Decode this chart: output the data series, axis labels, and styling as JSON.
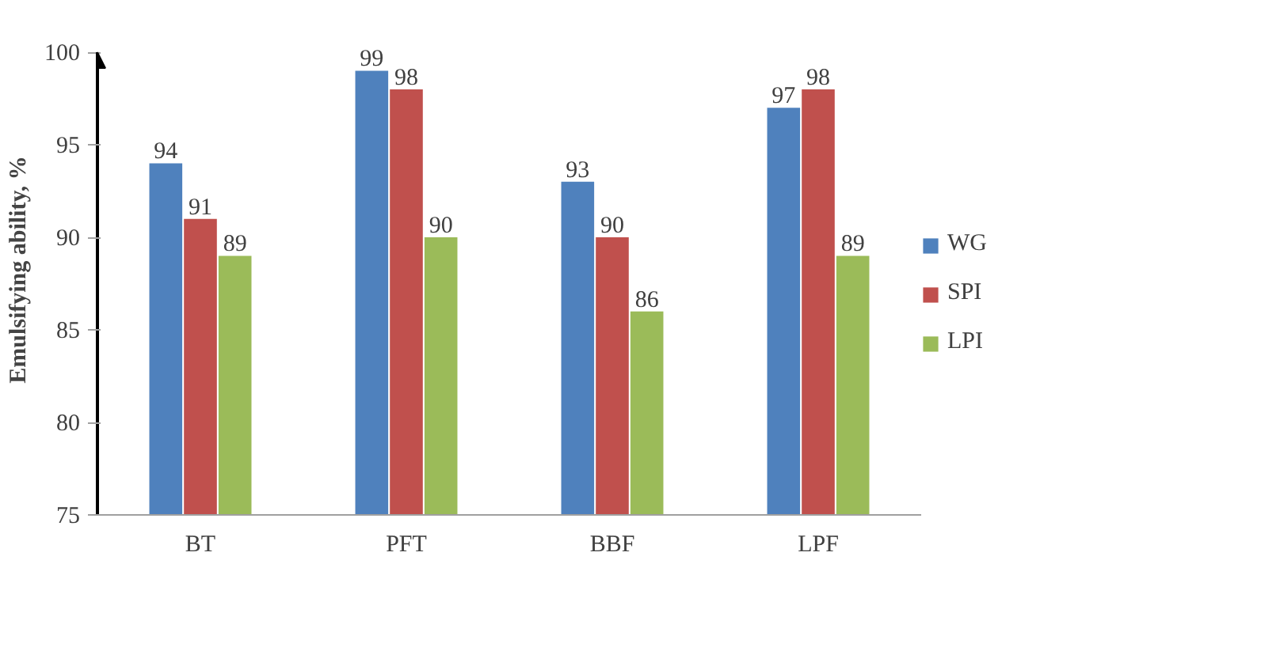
{
  "chart_data": {
    "type": "bar",
    "ylabel": "Emulsifying ability, %",
    "categories": [
      "BT",
      "PFT",
      "BBF",
      "LPF"
    ],
    "series": [
      {
        "name": "WG",
        "color": "#4f81bd",
        "values": [
          94,
          99,
          93,
          97
        ]
      },
      {
        "name": "SPI",
        "color": "#c0504d",
        "values": [
          91,
          98,
          90,
          98
        ]
      },
      {
        "name": "LPI",
        "color": "#9bbb59",
        "values": [
          89,
          90,
          86,
          89
        ]
      }
    ],
    "ylim": [
      75,
      100
    ],
    "yticks": [
      75,
      80,
      85,
      90,
      95,
      100
    ],
    "grid": false,
    "legend": "right",
    "data_labels": true
  }
}
